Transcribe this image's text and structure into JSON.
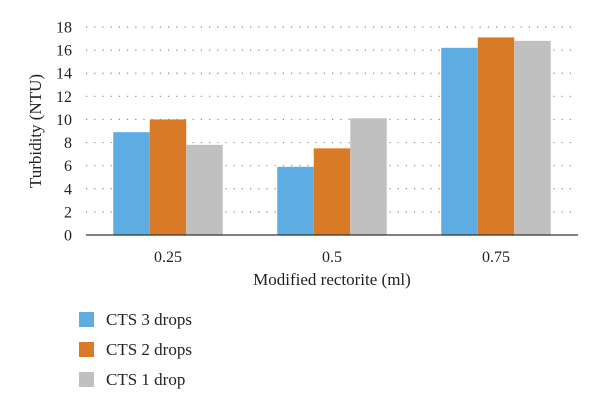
{
  "chart_data": {
    "type": "bar",
    "title": "",
    "xlabel": "Modified rectorite (ml)",
    "ylabel": "Turbidity (NTU)",
    "categories": [
      "0.25",
      "0.5",
      "0.75"
    ],
    "ylim": [
      0,
      18
    ],
    "yticks": [
      "0",
      "2",
      "4",
      "6",
      "8",
      "10",
      "12",
      "14",
      "16",
      "18"
    ],
    "grid": "dotted horizontal",
    "legend_position": "bottom-left",
    "series": [
      {
        "name": "CTS 3 drops",
        "color": "#5DADE2",
        "values": [
          8.9,
          5.9,
          16.2
        ]
      },
      {
        "name": "CTS 2 drops",
        "color": "#D97A26",
        "values": [
          10.0,
          7.5,
          17.1
        ]
      },
      {
        "name": "CTS 1 drop",
        "color": "#C0C0C0",
        "values": [
          7.8,
          10.1,
          16.8
        ]
      }
    ]
  }
}
